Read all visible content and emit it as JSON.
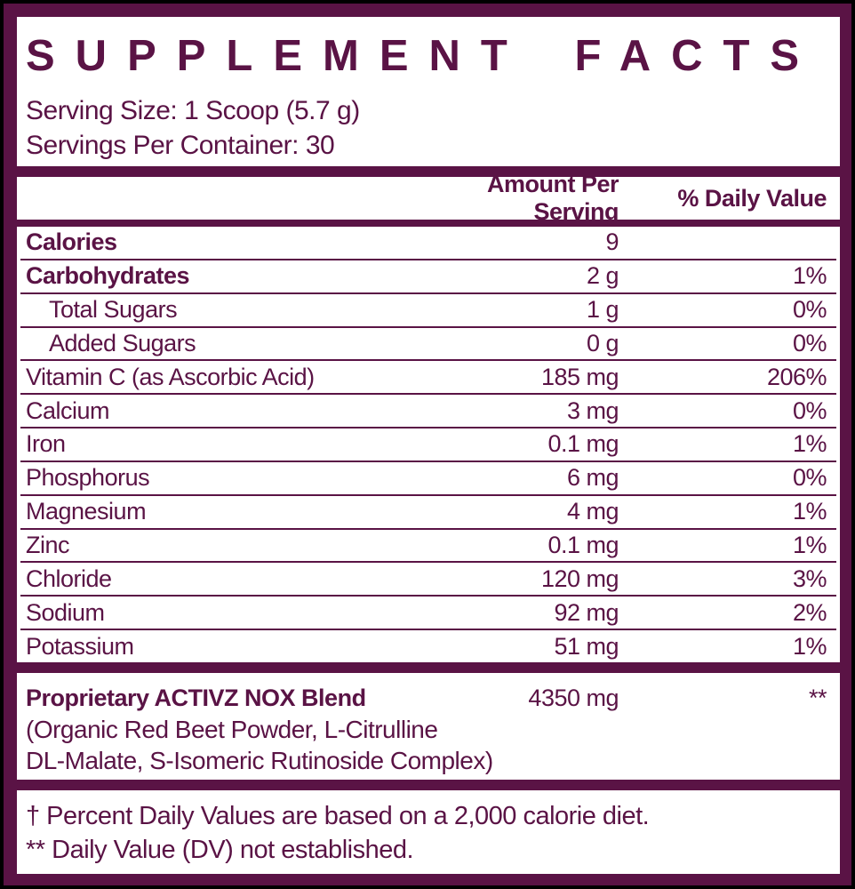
{
  "colors": {
    "maroon": "#5A1345",
    "background": "#000000",
    "panel": "#FFFFFF"
  },
  "header": {
    "title": "SUPPLEMENT FACTS",
    "serving_size": "Serving Size: 1 Scoop (5.7 g)",
    "servings_per_container": "Servings Per Container: 30"
  },
  "columns": {
    "amount": "Amount Per Serving",
    "daily_value": "% Daily Value"
  },
  "nutrients": [
    {
      "name": "Calories",
      "amount": "9",
      "dv": "",
      "bold": true,
      "indent": false
    },
    {
      "name": "Carbohydrates",
      "amount": "2 g",
      "dv": "1%",
      "bold": true,
      "indent": false
    },
    {
      "name": "Total Sugars",
      "amount": "1 g",
      "dv": "0%",
      "bold": false,
      "indent": true
    },
    {
      "name": "Added Sugars",
      "amount": "0 g",
      "dv": "0%",
      "bold": false,
      "indent": true
    },
    {
      "name": "Vitamin C (as Ascorbic Acid)",
      "amount": "185 mg",
      "dv": "206%",
      "bold": false,
      "indent": false
    },
    {
      "name": "Calcium",
      "amount": "3 mg",
      "dv": "0%",
      "bold": false,
      "indent": false
    },
    {
      "name": "Iron",
      "amount": "0.1 mg",
      "dv": "1%",
      "bold": false,
      "indent": false
    },
    {
      "name": "Phosphorus",
      "amount": "6 mg",
      "dv": "0%",
      "bold": false,
      "indent": false
    },
    {
      "name": "Magnesium",
      "amount": "4 mg",
      "dv": "1%",
      "bold": false,
      "indent": false
    },
    {
      "name": "Zinc",
      "amount": "0.1 mg",
      "dv": "1%",
      "bold": false,
      "indent": false
    },
    {
      "name": "Chloride",
      "amount": "120 mg",
      "dv": "3%",
      "bold": false,
      "indent": false
    },
    {
      "name": "Sodium",
      "amount": "92 mg",
      "dv": "2%",
      "bold": false,
      "indent": false
    },
    {
      "name": "Potassium",
      "amount": "51 mg",
      "dv": "1%",
      "bold": false,
      "indent": false
    }
  ],
  "proprietary_blend": {
    "name": "Proprietary ACTIVZ NOX Blend",
    "amount": "4350 mg",
    "dv": "**",
    "description_lines": [
      "(Organic Red Beet Powder, L-Citrulline",
      "DL-Malate, S-Isomeric Rutinoside Complex)"
    ]
  },
  "footnotes": [
    "† Percent Daily Values are based on a 2,000 calorie diet.",
    "** Daily Value (DV) not established."
  ]
}
